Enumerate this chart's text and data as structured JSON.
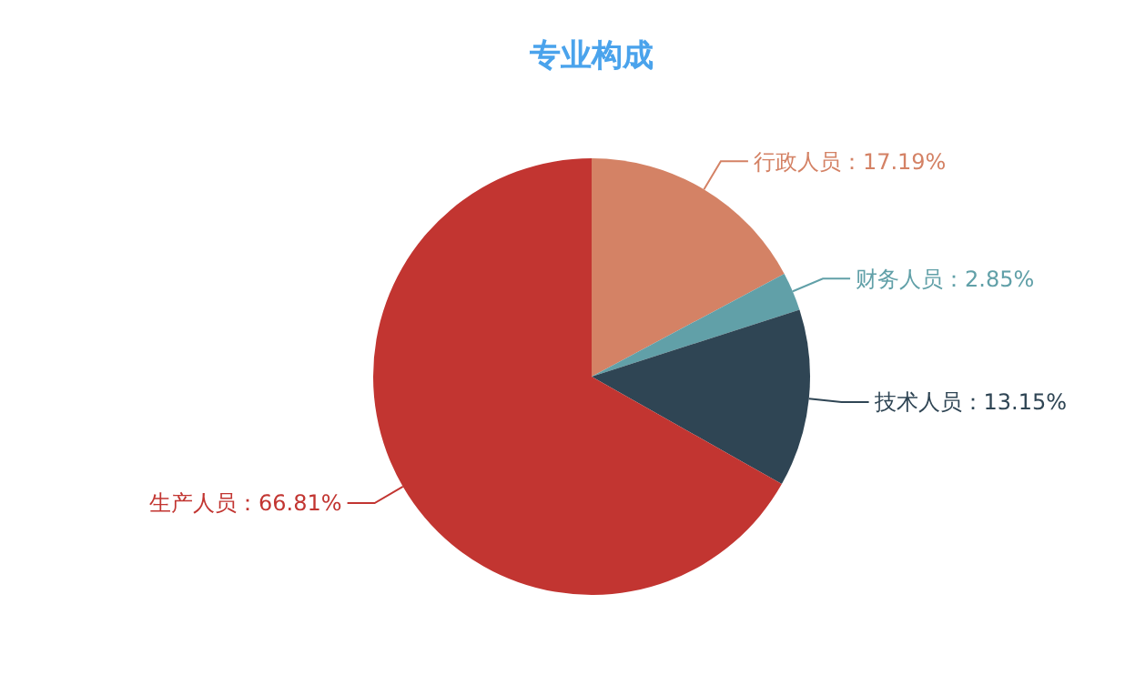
{
  "chart_data": {
    "type": "pie",
    "title": "专业构成",
    "categories": [
      "行政人员",
      "财务人员",
      "技术人员",
      "生产人员"
    ],
    "values": [
      17.19,
      2.85,
      13.15,
      66.81
    ],
    "value_labels": [
      "：17.19%",
      "：2.85%",
      "：13.15%",
      "：66.81%"
    ],
    "colors": [
      "#d48265",
      "#61a0a8",
      "#2f4554",
      "#c23531"
    ]
  }
}
